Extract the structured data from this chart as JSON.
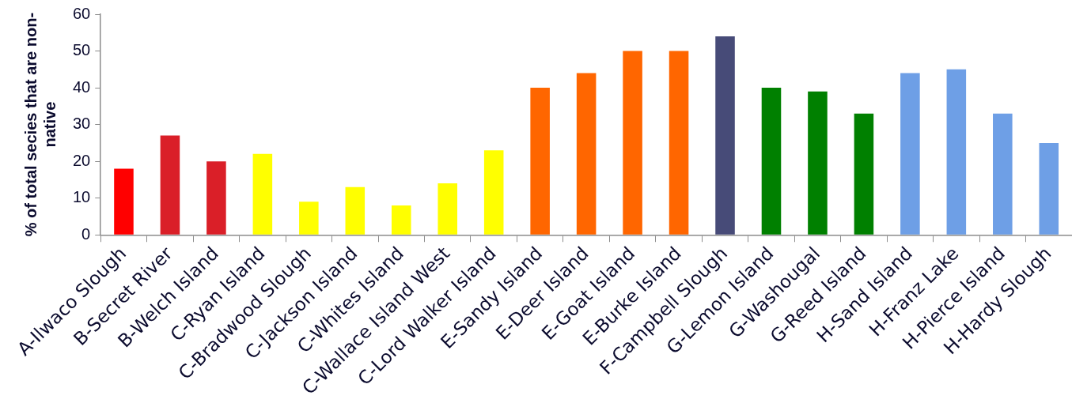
{
  "chart_data": {
    "type": "bar",
    "ylabel": "% of total secies that are non-native",
    "categories": [
      "A-Ilwaco Slough",
      "B-Secret River",
      "B-Welch Island",
      "C-Ryan Island",
      "C-Bradwood Slough",
      "C-Jackson Island",
      "C-Whites Island",
      "C-Wallace Island West",
      "C-Lord Walker Island",
      "E-Sandy Island",
      "E-Deer Island",
      "E-Goat Island",
      "E-Burke Island",
      "F-Campbell Slough",
      "G-Lemon Island",
      "G-Washougal",
      "G-Reed Island",
      "H-Sand Island",
      "H-Franz Lake",
      "H-Pierce Island",
      "H-Hardy Slough"
    ],
    "values": [
      18,
      27,
      20,
      22,
      9,
      13,
      8,
      14,
      23,
      40,
      44,
      50,
      50,
      54,
      40,
      39,
      33,
      44,
      45,
      33,
      25
    ],
    "colors": [
      "#ff0000",
      "#da1f28",
      "#da1f28",
      "#ffff00",
      "#ffff00",
      "#ffff00",
      "#ffff00",
      "#ffff00",
      "#ffff00",
      "#ff6600",
      "#ff6600",
      "#ff6600",
      "#ff6600",
      "#474b78",
      "#008000",
      "#008000",
      "#008000",
      "#6e9fe6",
      "#6e9fe6",
      "#6e9fe6",
      "#6e9fe6"
    ],
    "ylim": [
      0,
      60
    ],
    "yticks": [
      0,
      10,
      20,
      30,
      40,
      50,
      60
    ]
  }
}
